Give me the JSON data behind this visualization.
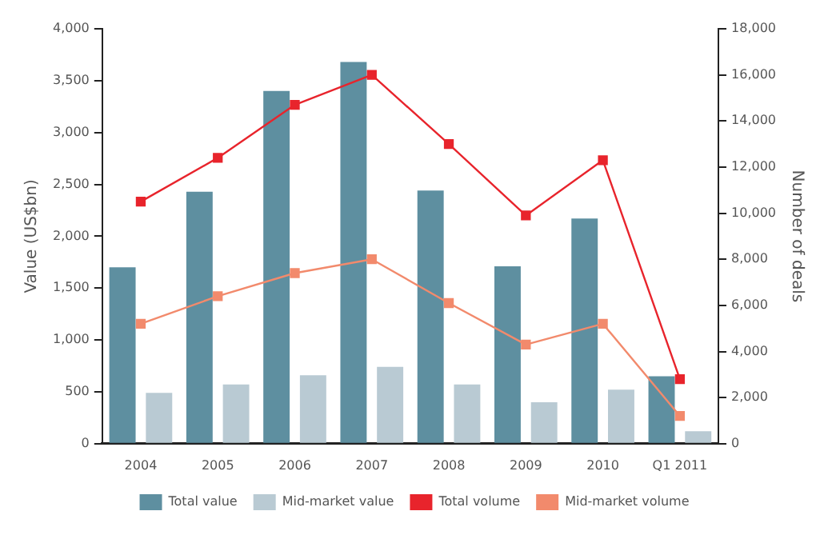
{
  "chart_data": {
    "type": "bar",
    "ylabel": "Value (US$bn)",
    "y2label": "Number of deals",
    "categories": [
      "2004",
      "2005",
      "2006",
      "2007",
      "2008",
      "2009",
      "2010",
      "Q1 2011"
    ],
    "series": [
      {
        "name": "Total value",
        "color": "#5e8fa0",
        "values": [
          1700,
          2430,
          3400,
          3680,
          2440,
          1710,
          2170,
          650
        ]
      },
      {
        "name": "Mid-market value",
        "color": "#b9cad3",
        "values": [
          490,
          570,
          660,
          740,
          570,
          400,
          520,
          120
        ]
      },
      {
        "name": "Total volume",
        "type": "line",
        "axis": "y2",
        "color": "#e8242c",
        "values": [
          10500,
          12400,
          14700,
          16000,
          13000,
          9900,
          12300,
          2800
        ]
      },
      {
        "name": "Mid-market volume",
        "type": "line",
        "axis": "y2",
        "color": "#f28a6c",
        "values": [
          5200,
          6400,
          7400,
          8000,
          6100,
          4300,
          5200,
          1200
        ]
      }
    ],
    "ylim": [
      0,
      4000
    ],
    "yticks": [
      0,
      {
        "value": 500,
        "label": "500"
      },
      {
        "value": 1000,
        "label": "1,000"
      },
      {
        "value": 1500,
        "label": "1,500"
      },
      {
        "value": 2000,
        "label": "2,000"
      },
      {
        "value": 2500,
        "label": "2,500"
      },
      {
        "value": 3000,
        "label": "3,000"
      },
      {
        "value": 3500,
        "label": "3,500"
      },
      {
        "value": 4000,
        "label": "4,000"
      }
    ],
    "y2lim": [
      0,
      18000
    ],
    "y2ticks": [
      0,
      {
        "value": 2000,
        "label": "2,000"
      },
      {
        "value": 4000,
        "label": "4,000"
      },
      {
        "value": 6000,
        "label": "6,000"
      },
      {
        "value": 8000,
        "label": "8,000"
      },
      {
        "value": 10000,
        "label": "10,000"
      },
      {
        "value": 12000,
        "label": "12,000"
      },
      {
        "value": 14000,
        "label": "14,000"
      },
      {
        "value": 16000,
        "label": "16,000"
      },
      {
        "value": 18000,
        "label": "18,000"
      }
    ],
    "grid": false,
    "legend": "bottom",
    "marker": "square",
    "line_style": "solid"
  }
}
